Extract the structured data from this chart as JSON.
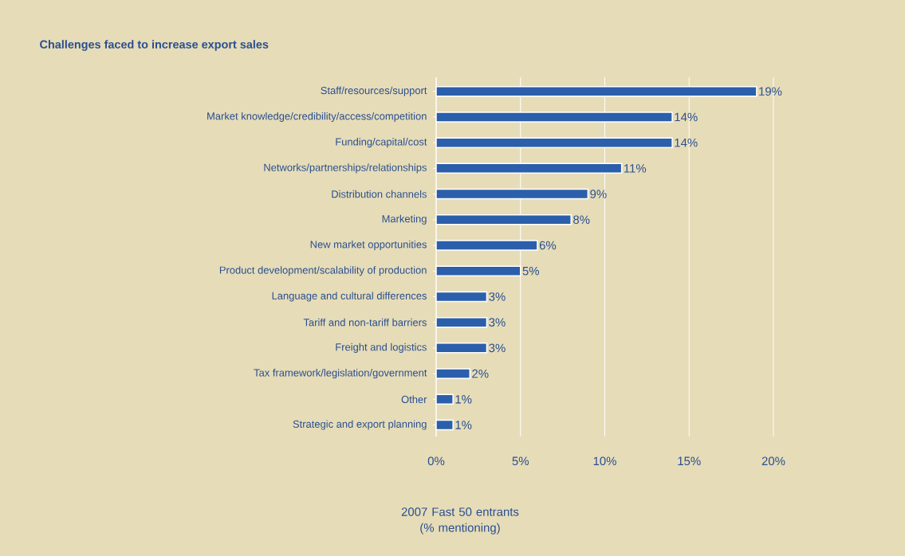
{
  "chart_data": {
    "type": "bar",
    "orientation": "horizontal",
    "title": "Challenges faced to increase export sales",
    "xlabel": "2007 Fast 50 entrants (% mentioning)",
    "categories": [
      "Staff/resources/support",
      "Market knowledge/credibility/access/competition",
      "Funding/capital/cost",
      "Networks/partnerships/relationships",
      "Distribution channels",
      "Marketing",
      "New market opportunities",
      "Product development/scalability of production",
      "Language and cultural differences",
      "Tariff and non-tariff barriers",
      "Freight and logistics",
      "Tax framework/legislation/government",
      "Other",
      "Strategic and export planning"
    ],
    "values": [
      19,
      14,
      14,
      11,
      9,
      8,
      6,
      5,
      3,
      3,
      3,
      2,
      1,
      1
    ],
    "value_labels": [
      "19%",
      "14%",
      "14%",
      "11%",
      "9%",
      "8%",
      "6%",
      "5%",
      "3%",
      "3%",
      "3%",
      "2%",
      "1%",
      "1%"
    ],
    "color": "#2b5fab",
    "xlim": [
      0,
      20
    ],
    "xticks": [
      {
        "value": 0,
        "label": "0%"
      },
      {
        "value": 5,
        "label": "5%"
      },
      {
        "value": 10,
        "label": "10%"
      },
      {
        "value": 15,
        "label": "15%"
      },
      {
        "value": 20,
        "label": "20%"
      }
    ],
    "grid": "x"
  }
}
